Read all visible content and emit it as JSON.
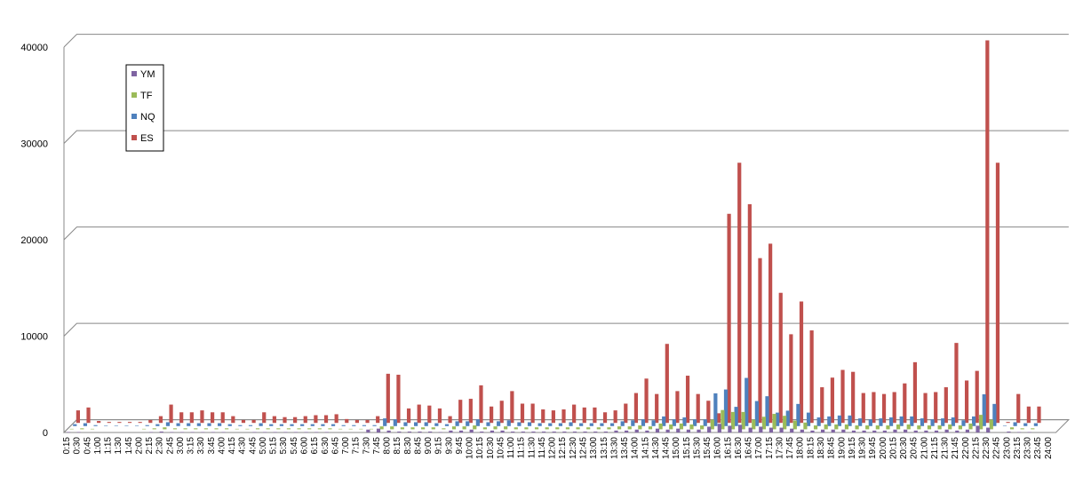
{
  "chart_data": {
    "type": "bar3d",
    "categories": [
      "0:15",
      "0:30",
      "0:45",
      "1:00",
      "1:15",
      "1:30",
      "1:45",
      "2:00",
      "2:15",
      "2:30",
      "2:45",
      "3:00",
      "3:15",
      "3:30",
      "3:45",
      "4:00",
      "4:15",
      "4:30",
      "4:45",
      "5:00",
      "5:15",
      "5:30",
      "5:45",
      "6:00",
      "6:15",
      "6:30",
      "6:45",
      "7:00",
      "7:15",
      "7:30",
      "7:45",
      "8:00",
      "8:15",
      "8:30",
      "8:45",
      "9:00",
      "9:15",
      "9:30",
      "9:45",
      "10:00",
      "10:15",
      "10:30",
      "10:45",
      "11:00",
      "11:15",
      "11:30",
      "11:45",
      "12:00",
      "12:15",
      "12:30",
      "12:45",
      "13:00",
      "13:15",
      "13:30",
      "13:45",
      "14:00",
      "14:15",
      "14:30",
      "14:45",
      "15:00",
      "15:15",
      "15:30",
      "15:45",
      "16:00",
      "16:15",
      "16:30",
      "16:45",
      "17:00",
      "17:15",
      "17:30",
      "17:45",
      "18:00",
      "18:15",
      "18:30",
      "18:45",
      "19:00",
      "19:15",
      "19:30",
      "19:45",
      "20:00",
      "20:15",
      "20:30",
      "20:45",
      "21:00",
      "21:15",
      "21:30",
      "21:45",
      "22:00",
      "22:15",
      "22:30",
      "22:45",
      "23:00",
      "23:15",
      "23:30",
      "23:45",
      "24:00"
    ],
    "series": [
      {
        "name": "YM",
        "color": "#7f64a2",
        "values": [
          50,
          50,
          0,
          0,
          0,
          0,
          0,
          0,
          50,
          100,
          50,
          50,
          50,
          50,
          50,
          50,
          0,
          0,
          50,
          50,
          50,
          50,
          50,
          50,
          50,
          50,
          0,
          0,
          0,
          300,
          400,
          200,
          100,
          100,
          100,
          100,
          50,
          200,
          200,
          300,
          100,
          200,
          200,
          100,
          100,
          100,
          100,
          100,
          100,
          100,
          100,
          100,
          100,
          200,
          200,
          300,
          200,
          400,
          300,
          400,
          300,
          300,
          600,
          900,
          700,
          800,
          500,
          600,
          500,
          500,
          400,
          300,
          200,
          300,
          300,
          300,
          200,
          200,
          200,
          200,
          300,
          300,
          200,
          200,
          200,
          300,
          200,
          300,
          700,
          500,
          0,
          100,
          50,
          50,
          0,
          0
        ]
      },
      {
        "name": "TF",
        "color": "#9bbb59",
        "values": [
          50,
          100,
          50,
          0,
          0,
          0,
          0,
          50,
          100,
          200,
          100,
          100,
          100,
          100,
          100,
          100,
          50,
          50,
          100,
          100,
          100,
          100,
          100,
          100,
          100,
          100,
          50,
          50,
          50,
          50,
          300,
          300,
          200,
          200,
          200,
          200,
          100,
          300,
          300,
          400,
          200,
          300,
          300,
          200,
          200,
          200,
          200,
          200,
          200,
          200,
          200,
          200,
          200,
          300,
          300,
          400,
          300,
          600,
          500,
          600,
          500,
          400,
          1000,
          2000,
          1800,
          1800,
          1000,
          1300,
          1600,
          1400,
          900,
          700,
          400,
          500,
          500,
          500,
          400,
          400,
          400,
          400,
          500,
          500,
          400,
          400,
          400,
          500,
          400,
          600,
          1500,
          1000,
          0,
          200,
          100,
          100,
          0,
          0
        ]
      },
      {
        "name": "NQ",
        "color": "#4f81bd",
        "values": [
          200,
          300,
          100,
          50,
          50,
          50,
          50,
          100,
          200,
          400,
          300,
          300,
          300,
          300,
          300,
          200,
          100,
          100,
          300,
          200,
          200,
          200,
          200,
          200,
          200,
          200,
          100,
          100,
          100,
          100,
          800,
          700,
          400,
          400,
          400,
          300,
          200,
          500,
          500,
          700,
          400,
          500,
          600,
          400,
          400,
          300,
          300,
          300,
          400,
          300,
          300,
          300,
          300,
          500,
          600,
          700,
          600,
          1000,
          700,
          900,
          700,
          700,
          3400,
          3800,
          2000,
          5000,
          2600,
          3100,
          1400,
          1600,
          2300,
          1400,
          900,
          1000,
          1100,
          1100,
          800,
          700,
          800,
          900,
          1000,
          1000,
          800,
          700,
          800,
          900,
          600,
          1000,
          3300,
          2300,
          50,
          400,
          300,
          300,
          0,
          0
        ]
      },
      {
        "name": "ES",
        "color": "#c0504d",
        "values": [
          1300,
          1600,
          200,
          100,
          100,
          100,
          100,
          300,
          700,
          1900,
          1100,
          1100,
          1300,
          1100,
          1100,
          700,
          300,
          300,
          1100,
          700,
          600,
          600,
          700,
          800,
          800,
          900,
          400,
          300,
          300,
          700,
          5100,
          5000,
          1500,
          1900,
          1800,
          1500,
          700,
          2400,
          2500,
          3900,
          1700,
          2300,
          3300,
          2000,
          2000,
          1400,
          1300,
          1400,
          1900,
          1600,
          1600,
          1100,
          1300,
          2000,
          3100,
          4600,
          3000,
          8200,
          3300,
          4900,
          3000,
          2300,
          1000,
          21700,
          27000,
          22700,
          17100,
          18600,
          13500,
          9200,
          12600,
          9600,
          3700,
          4700,
          5500,
          5300,
          3100,
          3200,
          3000,
          3200,
          4100,
          6300,
          3100,
          3200,
          3700,
          8300,
          4400,
          5400,
          39700,
          27000,
          100,
          3000,
          1700,
          1700,
          0,
          0
        ]
      }
    ],
    "ylim": [
      0,
      40000
    ],
    "yticks": [
      0,
      10000,
      20000,
      30000,
      40000
    ],
    "grid": true,
    "legend": "upper-left"
  }
}
